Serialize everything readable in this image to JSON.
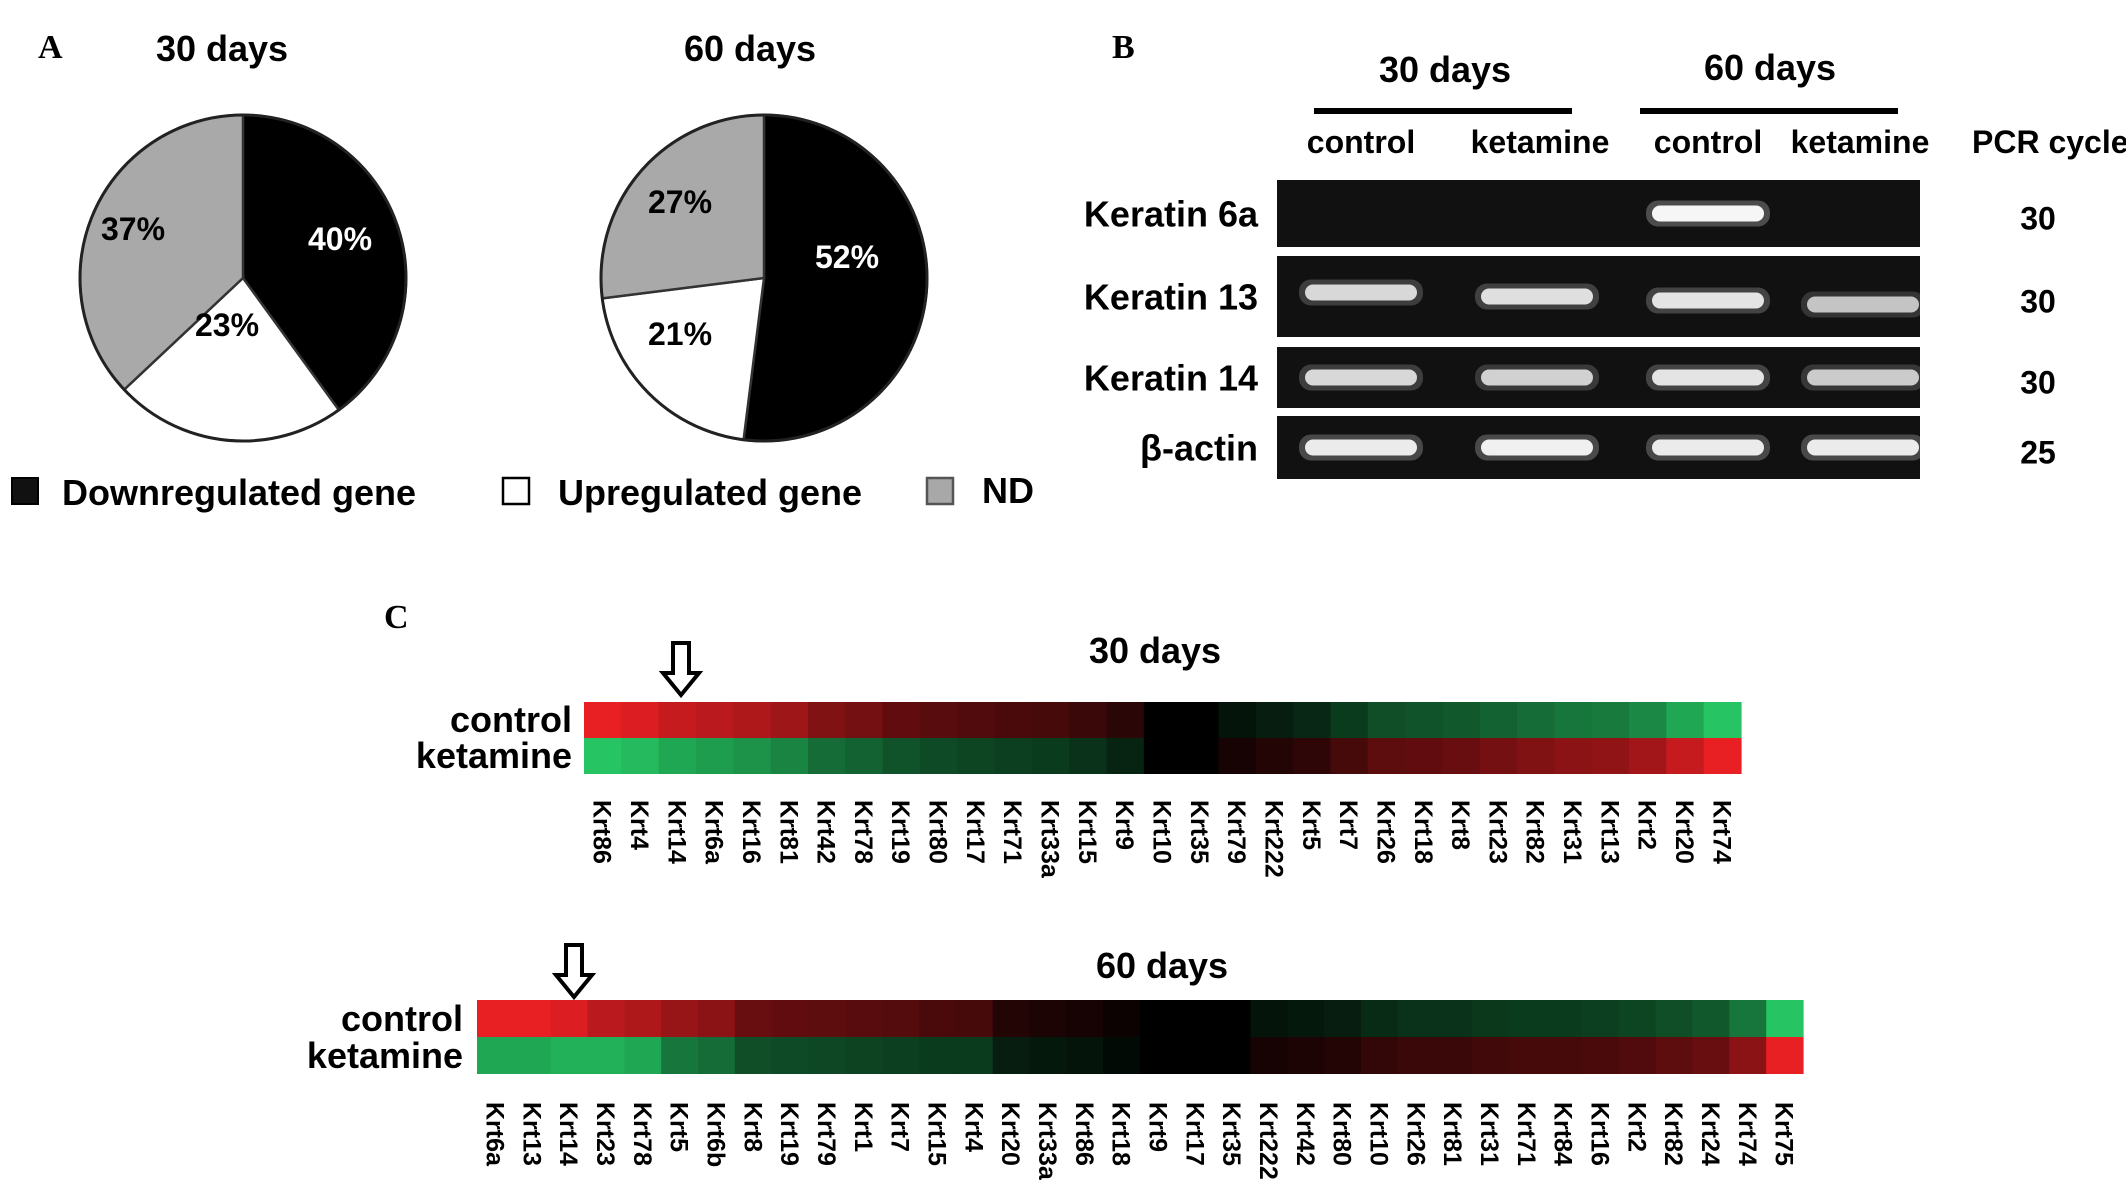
{
  "panels": {
    "a": "A",
    "b": "B",
    "c": "C"
  },
  "pies": [
    {
      "title": "30 days",
      "chart_data": {
        "type": "pie",
        "title": "30 days",
        "slices": [
          {
            "label": "Downregulated gene",
            "value": 40,
            "text": "40%"
          },
          {
            "label": "Upregulated gene",
            "value": 23,
            "text": "23%"
          },
          {
            "label": "ND",
            "value": 37,
            "text": "37%"
          }
        ]
      }
    },
    {
      "title": "60 days",
      "chart_data": {
        "type": "pie",
        "title": "60 days",
        "slices": [
          {
            "label": "Downregulated gene",
            "value": 52,
            "text": "52%"
          },
          {
            "label": "Upregulated gene",
            "value": 21,
            "text": "21%"
          },
          {
            "label": "ND",
            "value": 27,
            "text": "27%"
          }
        ]
      }
    }
  ],
  "legend": [
    {
      "label": "Downregulated gene",
      "color": "#111111"
    },
    {
      "label": "Upregulated gene",
      "color": "#ffffff"
    },
    {
      "label": "ND",
      "color": "#a8a8a8"
    }
  ],
  "gel": {
    "groups": [
      "30 days",
      "60 days"
    ],
    "lanes": [
      "control",
      "ketamine",
      "control",
      "ketamine"
    ],
    "cycle_header": "PCR cycle",
    "rows": [
      {
        "gene": "Keratin 6a",
        "cycles": "30",
        "intensity": [
          0,
          0,
          1,
          0
        ]
      },
      {
        "gene": "Keratin 13",
        "cycles": "30",
        "intensity": [
          0.75,
          0.8,
          0.85,
          0.6
        ]
      },
      {
        "gene": "Keratin 14",
        "cycles": "30",
        "intensity": [
          0.75,
          0.7,
          0.85,
          0.65
        ]
      },
      {
        "gene": "β-actin",
        "cycles": "25",
        "intensity": [
          0.9,
          0.95,
          0.9,
          0.9
        ]
      }
    ]
  },
  "heatmaps": [
    {
      "title": "30 days",
      "row_labels": [
        "control",
        "ketamine"
      ],
      "arrow_gene": "Krt14",
      "genes": [
        "Krt86",
        "Krt4",
        "Krt14",
        "Krt6a",
        "Krt16",
        "Krt81",
        "Krt42",
        "Krt78",
        "Krt19",
        "Krt80",
        "Krt17",
        "Krt71",
        "Krt33a",
        "Krt15",
        "Krt9",
        "Krt10",
        "Krt35",
        "Krt79",
        "Krt222",
        "Krt5",
        "Krt7",
        "Krt26",
        "Krt18",
        "Krt8",
        "Krt23",
        "Krt82",
        "Krt31",
        "Krt13",
        "Krt2",
        "Krt20",
        "Krt74"
      ],
      "control": [
        1.0,
        0.95,
        0.85,
        0.8,
        0.75,
        0.68,
        0.55,
        0.5,
        0.42,
        0.38,
        0.35,
        0.32,
        0.3,
        0.25,
        0.18,
        0.0,
        0.0,
        -0.1,
        -0.15,
        -0.2,
        -0.3,
        -0.4,
        -0.42,
        -0.45,
        -0.5,
        -0.55,
        -0.6,
        -0.62,
        -0.7,
        -0.85,
        -1.0
      ],
      "ketamine": [
        -1.0,
        -0.95,
        -0.85,
        -0.8,
        -0.75,
        -0.68,
        -0.55,
        -0.5,
        -0.42,
        -0.38,
        -0.35,
        -0.32,
        -0.3,
        -0.25,
        -0.18,
        0.0,
        0.0,
        0.1,
        0.15,
        0.2,
        0.3,
        0.4,
        0.42,
        0.45,
        0.5,
        0.55,
        0.6,
        0.62,
        0.7,
        0.85,
        1.0
      ]
    },
    {
      "title": "60 days",
      "row_labels": [
        "control",
        "ketamine"
      ],
      "arrow_gene": "Krt14",
      "genes": [
        "Krt6a",
        "Krt13",
        "Krt14",
        "Krt23",
        "Krt78",
        "Krt5",
        "Krt6b",
        "Krt8",
        "Krt19",
        "Krt79",
        "Krt1",
        "Krt7",
        "Krt15",
        "Krt4",
        "Krt20",
        "Krt33a",
        "Krt86",
        "Krt18",
        "Krt9",
        "Krt17",
        "Krt35",
        "Krt222",
        "Krt42",
        "Krt80",
        "Krt10",
        "Krt26",
        "Krt81",
        "Krt31",
        "Krt71",
        "Krt84",
        "Krt16",
        "Krt2",
        "Krt82",
        "Krt24",
        "Krt74",
        "Krt75"
      ],
      "control": [
        1.0,
        1.0,
        0.95,
        0.8,
        0.75,
        0.65,
        0.6,
        0.45,
        0.42,
        0.4,
        0.38,
        0.36,
        0.32,
        0.3,
        0.15,
        0.12,
        0.1,
        0.05,
        0.0,
        0.0,
        0.0,
        -0.1,
        -0.12,
        -0.15,
        -0.22,
        -0.25,
        -0.25,
        -0.28,
        -0.3,
        -0.3,
        -0.32,
        -0.35,
        -0.4,
        -0.45,
        -0.6,
        -1.0
      ],
      "ketamine": [
        -0.85,
        -0.85,
        -0.9,
        -0.9,
        -0.85,
        -0.6,
        -0.55,
        -0.4,
        -0.38,
        -0.36,
        -0.34,
        -0.32,
        -0.3,
        -0.3,
        -0.15,
        -0.12,
        -0.1,
        -0.05,
        0.0,
        0.0,
        0.0,
        0.1,
        0.12,
        0.15,
        0.22,
        0.25,
        0.25,
        0.28,
        0.3,
        0.3,
        0.32,
        0.35,
        0.4,
        0.45,
        0.6,
        1.0
      ]
    }
  ]
}
